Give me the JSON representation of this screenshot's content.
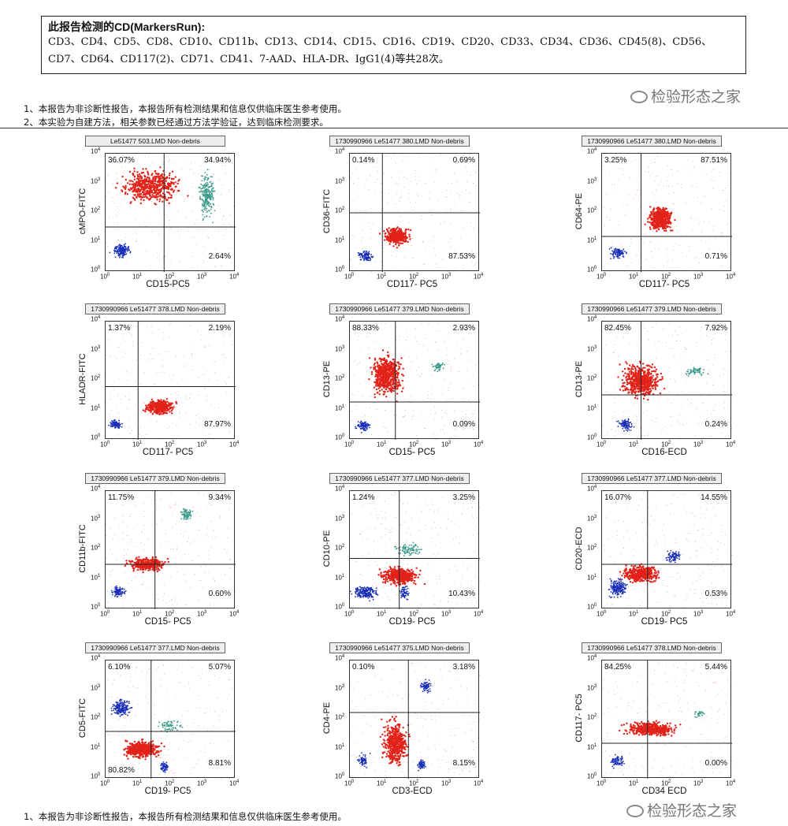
{
  "header_box": {
    "title": "此报告检测的CD(MarkersRun):",
    "line1": "CD3、CD4、CD5、CD8、CD10、CD11b、CD13、CD14、CD15、CD16、CD19、CD20、CD33、CD34、CD36、CD45(8)、CD56、",
    "line2": "CD7、CD64、CD117(2)、CD71、CD41、7-AAD、HLA-DR、IgG1(4)等共28次。"
  },
  "notes": {
    "note1": "1、本报告为非诊断性报告，本报告所有检测结果和信息仅供临床医生参考使用。",
    "note2": "2、本实验为自建方法，相关参数已经通过方法学验证，达到临床检测要求。",
    "footer_note": "1、本报告为非诊断性报告，本报告所有检测结果和信息仅供临床医生参考使用。"
  },
  "watermark": "检验形态之家",
  "colors": {
    "red": "#e2231a",
    "teal": "#3a9a8a",
    "blue": "#1a2fb8",
    "purple": "#5a3a8a",
    "green": "#3a8a3a"
  },
  "panels": [
    {
      "title": "Le51477 503.LMD  Non-debris",
      "x": "CD15-PC5",
      "y": "cMPO-FITC",
      "q": [
        "36.07%",
        "34.94%",
        "",
        "2.64%"
      ]
    },
    {
      "title": "1730990966 Le51477 380.LMD  Non-debris",
      "x": "CD117- PC5",
      "y": "CD36-FITC",
      "q": [
        "0.14%",
        "0.69%",
        "",
        "87.53%"
      ]
    },
    {
      "title": "1730990966 Le51477 380.LMD  Non-debris",
      "x": "CD117- PC5",
      "y": "CD64-PE",
      "q": [
        "3.25%",
        "87.51%",
        "",
        "0.71%"
      ]
    },
    {
      "title": "1730990966 Le51477 378.LMD  Non-debris",
      "x": "CD117- PC5",
      "y": "HLADR-FITC",
      "q": [
        "1.37%",
        "2.19%",
        "",
        "87.97%"
      ]
    },
    {
      "title": "1730990966 Le51477 379.LMD  Non-debris",
      "x": "CD15- PC5",
      "y": "CD13-PE",
      "q": [
        "88.33%",
        "2.93%",
        "",
        "0.09%"
      ]
    },
    {
      "title": "1730990966 Le51477 379.LMD  Non-debris",
      "x": "CD16-ECD",
      "y": "CD13-PE",
      "q": [
        "82.45%",
        "7.92%",
        "",
        "0.24%"
      ]
    },
    {
      "title": "1730990966 Le51477 379.LMD  Non-debris",
      "x": "CD15- PC5",
      "y": "CD11b-FITC",
      "q": [
        "11.75%",
        "9.34%",
        "",
        "0.60%"
      ]
    },
    {
      "title": "1730990966 Le51477 377.LMD  Non-debris",
      "x": "CD19- PC5",
      "y": "CD10-PE",
      "q": [
        "1.24%",
        "3.25%",
        "",
        "10.43%"
      ]
    },
    {
      "title": "1730990966 Le51477 377.LMD  Non-debris",
      "x": "CD19- PC5",
      "y": "CD20-ECD",
      "q": [
        "16.07%",
        "14.55%",
        "",
        "0.53%"
      ]
    },
    {
      "title": "1730990966 Le51477 377.LMD  Non-debris",
      "x": "CD19- PC5",
      "y": "CD5-FITC",
      "q": [
        "6.10%",
        "5.07%",
        "80.82%",
        "8.81%"
      ]
    },
    {
      "title": "1730990966 Le51477 375.LMD  Non-debris",
      "x": "CD3-ECD",
      "y": "CD4-PE",
      "q": [
        "0.10%",
        "3.18%",
        "",
        "8.15%"
      ]
    },
    {
      "title": "1730990966 Le51477 378.LMD  Non-debris",
      "x": "CD34 ECD",
      "y": "CD117- PC5",
      "q": [
        "84.25%",
        "5.44%",
        "",
        "0.00%"
      ]
    }
  ]
}
